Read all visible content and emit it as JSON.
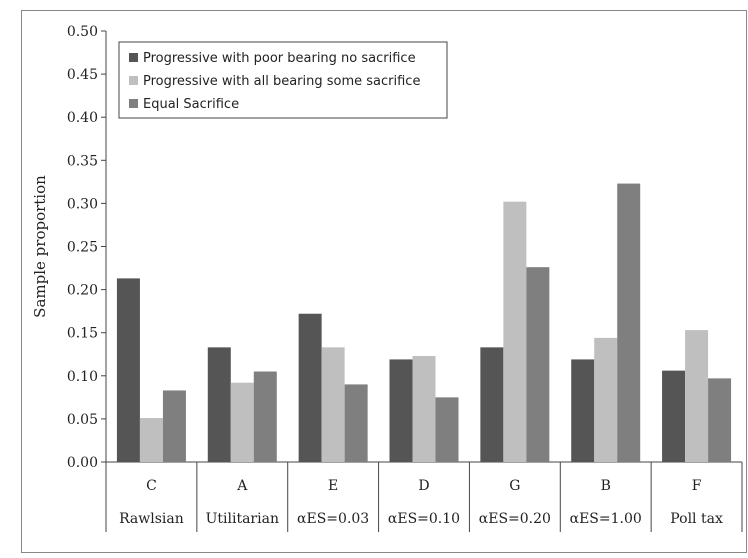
{
  "chart_data": {
    "type": "bar",
    "ylabel": "Sample proportion",
    "xlabel": "",
    "title": "",
    "ylim": [
      0,
      0.5
    ],
    "yticks": [
      "0.00",
      "0.05",
      "0.10",
      "0.15",
      "0.20",
      "0.25",
      "0.30",
      "0.35",
      "0.40",
      "0.45",
      "0.50"
    ],
    "grid": false,
    "legend_position": "top-left",
    "categories": [
      {
        "code": "C",
        "name": "Rawlsian"
      },
      {
        "code": "A",
        "name": "Utilitarian"
      },
      {
        "code": "E",
        "name": "αES=0.03"
      },
      {
        "code": "D",
        "name": "αES=0.10"
      },
      {
        "code": "G",
        "name": "αES=0.20"
      },
      {
        "code": "B",
        "name": "αES=1.00"
      },
      {
        "code": "F",
        "name": "Poll tax"
      }
    ],
    "series": [
      {
        "name": "Progressive with poor bearing no sacrifice",
        "color": "#555555",
        "values": [
          0.213,
          0.133,
          0.172,
          0.119,
          0.133,
          0.119,
          0.106
        ]
      },
      {
        "name": "Progressive with all bearing some sacrifice",
        "color": "#bfbfbf",
        "values": [
          0.051,
          0.092,
          0.133,
          0.123,
          0.302,
          0.144,
          0.153
        ]
      },
      {
        "name": "Equal Sacrifice",
        "color": "#7f7f7f",
        "values": [
          0.083,
          0.105,
          0.09,
          0.075,
          0.226,
          0.323,
          0.097
        ]
      }
    ]
  }
}
